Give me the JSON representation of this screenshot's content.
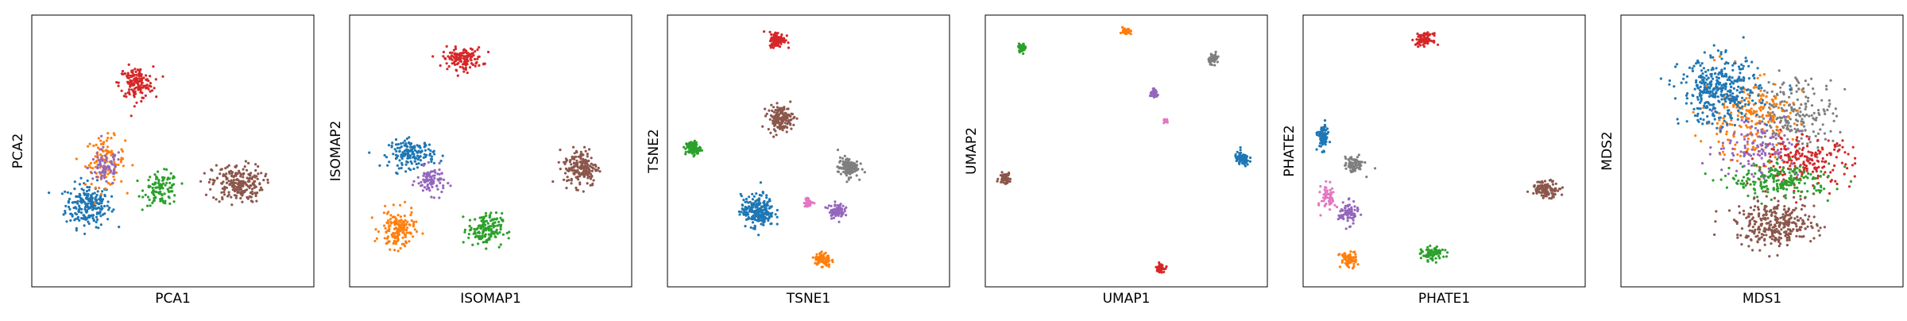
{
  "colors": {
    "c0": "#1f77b4",
    "c1": "#ff7f0e",
    "c2": "#2ca02c",
    "c3": "#d62728",
    "c4": "#9467bd",
    "c5": "#8c564b",
    "c6": "#e377c2",
    "c7": "#7f7f7f"
  },
  "chart_data": [
    {
      "type": "scatter",
      "xlabel": "PCA1",
      "ylabel": "PCA2",
      "xlim": [
        0,
        100
      ],
      "ylim": [
        0,
        100
      ],
      "ticks": "none",
      "clusters": [
        {
          "color": "c0",
          "center": [
            20,
            30
          ],
          "spread": [
            8,
            8
          ],
          "points": 220
        },
        {
          "color": "c1",
          "center": [
            26,
            46
          ],
          "spread": [
            7,
            9
          ],
          "points": 110
        },
        {
          "color": "c4",
          "center": [
            26,
            44
          ],
          "spread": [
            6,
            7
          ],
          "points": 70
        },
        {
          "color": "c2",
          "center": [
            46,
            36
          ],
          "spread": [
            6,
            6
          ],
          "points": 110
        },
        {
          "color": "c3",
          "center": [
            37,
            75
          ],
          "spread": [
            6,
            6
          ],
          "points": 150
        },
        {
          "color": "c5",
          "center": [
            73,
            38
          ],
          "spread": [
            9,
            7
          ],
          "points": 220
        }
      ]
    },
    {
      "type": "scatter",
      "xlabel": "ISOMAP1",
      "ylabel": "ISOMAP2",
      "xlim": [
        0,
        100
      ],
      "ylim": [
        0,
        100
      ],
      "ticks": "none",
      "clusters": [
        {
          "color": "c3",
          "center": [
            40,
            84
          ],
          "spread": [
            7,
            4
          ],
          "points": 140
        },
        {
          "color": "c0",
          "center": [
            22,
            49
          ],
          "spread": [
            8,
            5
          ],
          "points": 170
        },
        {
          "color": "c4",
          "center": [
            29,
            39
          ],
          "spread": [
            5,
            5
          ],
          "points": 90
        },
        {
          "color": "c1",
          "center": [
            17,
            21
          ],
          "spread": [
            6,
            7
          ],
          "points": 150
        },
        {
          "color": "c2",
          "center": [
            48,
            21
          ],
          "spread": [
            6,
            6
          ],
          "points": 150
        },
        {
          "color": "c5",
          "center": [
            82,
            44
          ],
          "spread": [
            6,
            7
          ],
          "points": 180
        }
      ]
    },
    {
      "type": "scatter",
      "xlabel": "TSNE1",
      "ylabel": "TSNE2",
      "xlim": [
        0,
        100
      ],
      "ylim": [
        0,
        100
      ],
      "ticks": "none",
      "clusters": [
        {
          "color": "c3",
          "center": [
            39,
            91
          ],
          "spread": [
            2.8,
            2.8
          ],
          "points": 110
        },
        {
          "color": "c5",
          "center": [
            40,
            62
          ],
          "spread": [
            4.5,
            4.5
          ],
          "points": 150
        },
        {
          "color": "c2",
          "center": [
            9,
            51
          ],
          "spread": [
            2.6,
            2.6
          ],
          "points": 90
        },
        {
          "color": "c7",
          "center": [
            64,
            44
          ],
          "spread": [
            3.6,
            3.6
          ],
          "points": 120
        },
        {
          "color": "c0",
          "center": [
            32,
            28
          ],
          "spread": [
            5.8,
            5.8
          ],
          "points": 230
        },
        {
          "color": "c6",
          "center": [
            50,
            31
          ],
          "spread": [
            1.6,
            1.6
          ],
          "points": 40
        },
        {
          "color": "c4",
          "center": [
            60,
            28
          ],
          "spread": [
            2.7,
            2.7
          ],
          "points": 80
        },
        {
          "color": "c1",
          "center": [
            55,
            10
          ],
          "spread": [
            2.8,
            2.8
          ],
          "points": 90
        }
      ]
    },
    {
      "type": "scatter",
      "xlabel": "UMAP1",
      "ylabel": "UMAP2",
      "xlim": [
        0,
        100
      ],
      "ylim": [
        0,
        100
      ],
      "ticks": "none",
      "clusters": [
        {
          "color": "c2",
          "center": [
            13,
            88
          ],
          "spread": [
            1.4,
            1.4
          ],
          "points": 40
        },
        {
          "color": "c1",
          "center": [
            50,
            94
          ],
          "spread": [
            1.4,
            1.4
          ],
          "points": 40
        },
        {
          "color": "c7",
          "center": [
            81,
            84
          ],
          "spread": [
            1.8,
            1.8
          ],
          "points": 50
        },
        {
          "color": "c4",
          "center": [
            60,
            71
          ],
          "spread": [
            1.5,
            1.5
          ],
          "points": 40
        },
        {
          "color": "c6",
          "center": [
            64,
            61
          ],
          "spread": [
            0.8,
            0.8
          ],
          "points": 20
        },
        {
          "color": "c0",
          "center": [
            91,
            47
          ],
          "spread": [
            2.6,
            2.6
          ],
          "points": 80
        },
        {
          "color": "c5",
          "center": [
            7,
            40
          ],
          "spread": [
            2.0,
            2.0
          ],
          "points": 60
        },
        {
          "color": "c3",
          "center": [
            62,
            7
          ],
          "spread": [
            1.5,
            1.5
          ],
          "points": 40
        }
      ]
    },
    {
      "type": "scatter",
      "xlabel": "PHATE1",
      "ylabel": "PHATE2",
      "xlim": [
        0,
        100
      ],
      "ylim": [
        0,
        100
      ],
      "ticks": "none",
      "clusters": [
        {
          "color": "c3",
          "center": [
            43,
            91
          ],
          "spread": [
            3,
            2.2
          ],
          "points": 90
        },
        {
          "color": "c0",
          "center": [
            7,
            55
          ],
          "spread": [
            1.8,
            4.5
          ],
          "points": 90
        },
        {
          "color": "c7",
          "center": [
            18,
            45
          ],
          "spread": [
            3.5,
            3
          ],
          "points": 80
        },
        {
          "color": "c6",
          "center": [
            9,
            33
          ],
          "spread": [
            2.5,
            5
          ],
          "points": 60
        },
        {
          "color": "c4",
          "center": [
            16,
            27
          ],
          "spread": [
            3.5,
            4
          ],
          "points": 80
        },
        {
          "color": "c1",
          "center": [
            16,
            10
          ],
          "spread": [
            3,
            3
          ],
          "points": 70
        },
        {
          "color": "c2",
          "center": [
            46,
            12
          ],
          "spread": [
            4,
            2.5
          ],
          "points": 80
        },
        {
          "color": "c5",
          "center": [
            86,
            36
          ],
          "spread": [
            5,
            3
          ],
          "points": 110
        }
      ]
    },
    {
      "type": "scatter",
      "xlabel": "MDS1",
      "ylabel": "MDS2",
      "xlim": [
        0,
        100
      ],
      "ylim": [
        0,
        100
      ],
      "ticks": "none",
      "clusters": [
        {
          "color": "c7",
          "center": [
            62,
            63
          ],
          "spread": [
            14,
            14
          ],
          "points": 220
        },
        {
          "color": "c1",
          "center": [
            45,
            62
          ],
          "spread": [
            16,
            15
          ],
          "points": 220
        },
        {
          "color": "c3",
          "center": [
            65,
            46
          ],
          "spread": [
            17,
            9
          ],
          "points": 200
        },
        {
          "color": "c4",
          "center": [
            48,
            52
          ],
          "spread": [
            15,
            12
          ],
          "points": 120
        },
        {
          "color": "c2",
          "center": [
            57,
            39
          ],
          "spread": [
            18,
            6
          ],
          "points": 200
        },
        {
          "color": "c0",
          "center": [
            35,
            72
          ],
          "spread": [
            14,
            12
          ],
          "points": 380
        },
        {
          "color": "c5",
          "center": [
            55,
            23
          ],
          "spread": [
            14,
            8
          ],
          "points": 320
        }
      ]
    }
  ]
}
